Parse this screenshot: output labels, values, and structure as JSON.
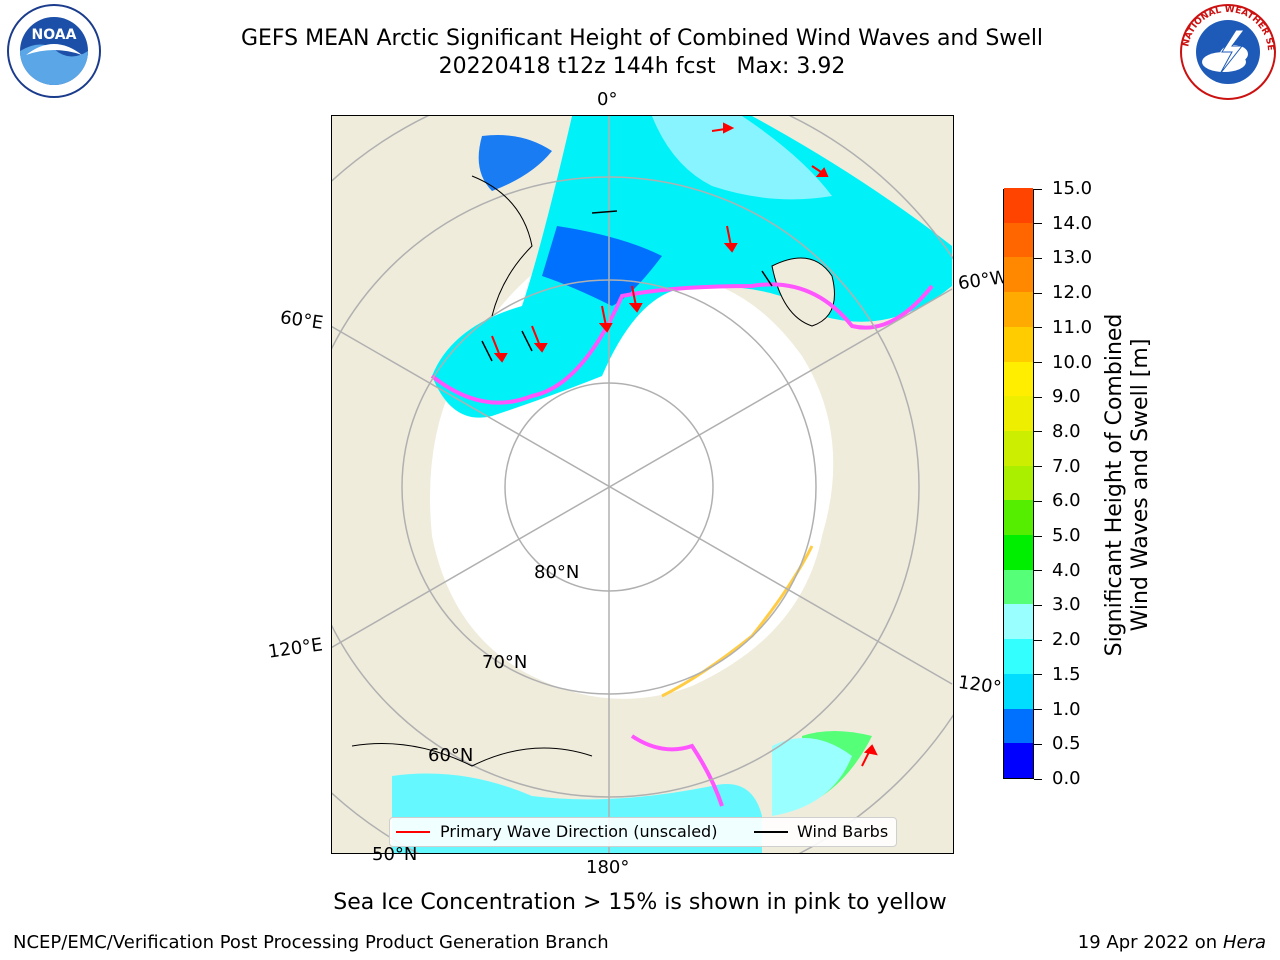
{
  "title": {
    "line1": "GEFS MEAN Arctic Significant Height of Combined Wind Waves and Swell",
    "line2": "20220418 t12z 144h fcst   Max: 3.92"
  },
  "map": {
    "lon_labels": [
      "0°",
      "60°E",
      "60°W",
      "120°E",
      "120°W",
      "180°"
    ],
    "lat_labels": [
      "80°N",
      "70°N",
      "60°N",
      "50°N"
    ],
    "colors": {
      "land": "#efecdc",
      "ocean_ice": "#ffffff",
      "graticule": "#b0b0b0",
      "coast": "#000000",
      "ice_edge_pink": "#ff55ff",
      "ice_edge_yellow": "#ffcc44",
      "arrow": "#ff0000",
      "barb": "#000000"
    }
  },
  "legend": {
    "primary_wave": "Primary Wave Direction (unscaled)",
    "wind_barbs": "Wind Barbs"
  },
  "colorbar": {
    "title_line1": "Significant Height of Combined",
    "title_line2": "Wind Waves and Swell [m]",
    "ticks": [
      "0.0",
      "0.5",
      "1.0",
      "1.5",
      "2.0",
      "3.0",
      "4.0",
      "5.0",
      "6.0",
      "7.0",
      "8.0",
      "9.0",
      "10.0",
      "11.0",
      "12.0",
      "13.0",
      "14.0",
      "15.0"
    ],
    "colors": [
      "#0000ff",
      "#0070ff",
      "#00ddff",
      "#33ffff",
      "#99ffff",
      "#55ff77",
      "#00ee00",
      "#55ee00",
      "#aaee00",
      "#ccee00",
      "#eeee00",
      "#ffee00",
      "#ffcc00",
      "#ffaa00",
      "#ff8800",
      "#ff6600",
      "#ff4400",
      "#ff1100"
    ]
  },
  "caption": "Sea Ice Concentration > 15% is shown in pink to yellow",
  "footer": {
    "left": "NCEP/EMC/Verification Post Processing Product Generation Branch",
    "right_date": "19 Apr 2022 on ",
    "right_host": "Hera"
  },
  "logos": {
    "noaa": "NOAA",
    "noaa_ring": "NATIONAL OCEANIC AND ATMOSPHERIC ADMINISTRATION · U.S. DEPARTMENT OF COMMERCE",
    "nws_ring": "NATIONAL WEATHER SERVICE"
  }
}
